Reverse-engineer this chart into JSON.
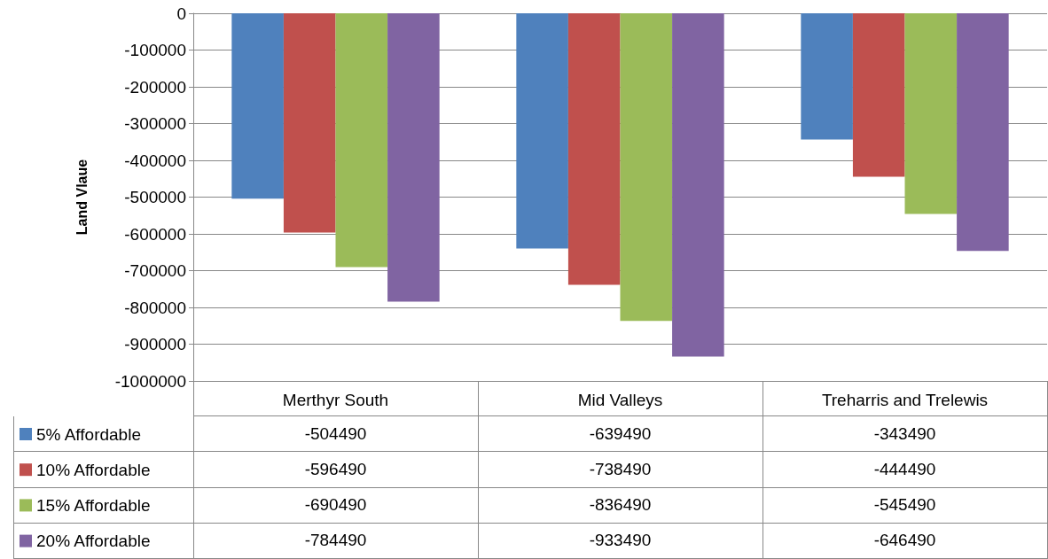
{
  "chart_data": {
    "type": "bar",
    "ylabel": "Land Vlaue",
    "categories": [
      "Merthyr South",
      "Mid Valleys",
      "Treharris and Trelewis"
    ],
    "series": [
      {
        "name": "5% Affordable",
        "color": "#4f81bd",
        "values": [
          -504490,
          -639490,
          -343490
        ]
      },
      {
        "name": "10% Affordable",
        "color": "#c0504d",
        "values": [
          -596490,
          -738490,
          -444490
        ]
      },
      {
        "name": "15% Affordable",
        "color": "#9bbb59",
        "values": [
          -690490,
          -836490,
          -545490
        ]
      },
      {
        "name": "20% Affordable",
        "color": "#8064a2",
        "values": [
          -784490,
          -933490,
          -646490
        ]
      }
    ],
    "ylim": [
      -1000000,
      0
    ],
    "yticks": [
      -1000000,
      -900000,
      -800000,
      -700000,
      -600000,
      -500000,
      -400000,
      -300000,
      -200000,
      -100000,
      0
    ],
    "grid": "y",
    "legend": "bottom",
    "data_labels": true
  }
}
